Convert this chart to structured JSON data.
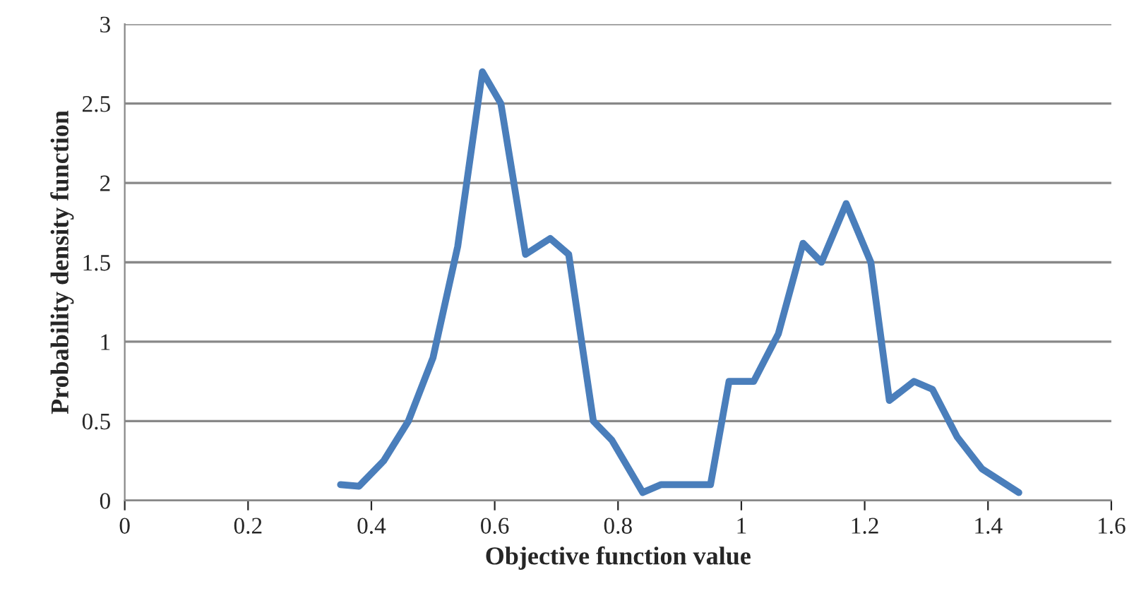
{
  "chart_data": {
    "type": "line",
    "xlabel": "Objective function value",
    "ylabel": "Probability density function",
    "x": [
      0.35,
      0.38,
      0.42,
      0.46,
      0.5,
      0.54,
      0.58,
      0.61,
      0.65,
      0.69,
      0.72,
      0.76,
      0.79,
      0.84,
      0.87,
      0.91,
      0.95,
      0.98,
      1.02,
      1.06,
      1.1,
      1.13,
      1.17,
      1.21,
      1.24,
      1.28,
      1.31,
      1.35,
      1.39,
      1.45
    ],
    "series": [
      {
        "color": "#4a7ebb",
        "values": [
          0.1,
          0.09,
          0.25,
          0.5,
          0.9,
          1.6,
          2.7,
          2.5,
          1.55,
          1.65,
          1.55,
          0.5,
          0.38,
          0.05,
          0.1,
          0.1,
          0.1,
          0.75,
          0.75,
          1.05,
          1.62,
          1.5,
          1.87,
          1.5,
          0.63,
          0.75,
          0.7,
          0.4,
          0.2,
          0.05
        ]
      }
    ],
    "xlim": [
      0,
      1.6
    ],
    "ylim": [
      0,
      3
    ],
    "xticks": [
      0,
      0.2,
      0.4,
      0.6,
      0.8,
      1,
      1.2,
      1.4,
      1.6
    ],
    "yticks": [
      0,
      0.5,
      1,
      1.5,
      2,
      2.5,
      3
    ],
    "grid": "y",
    "marker": "none",
    "line_style": "solid"
  }
}
